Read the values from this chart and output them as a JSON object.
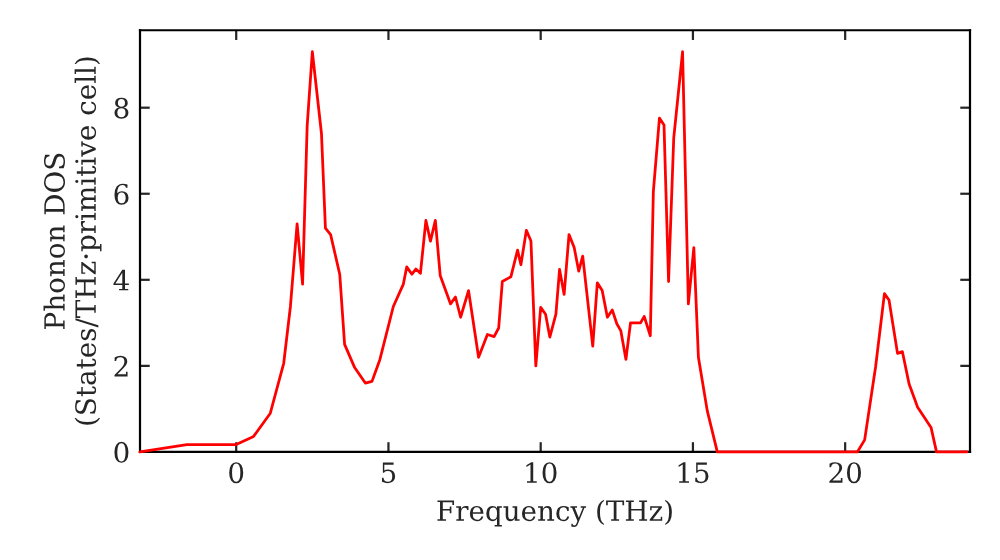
{
  "chart_data": {
    "type": "line",
    "xlabel": "Frequency (THz)",
    "ylabel": "Phonon DOS\n(States/THz·primitive cell)",
    "x": [
      -3.16,
      -1.62,
      0.0,
      0.57,
      1.12,
      1.56,
      1.78,
      2.0,
      2.18,
      2.33,
      2.5,
      2.8,
      2.93,
      3.1,
      3.4,
      3.56,
      3.89,
      4.24,
      4.46,
      4.72,
      5.16,
      5.49,
      5.6,
      5.77,
      5.9,
      6.05,
      6.23,
      6.38,
      6.54,
      6.7,
      7.04,
      7.2,
      7.37,
      7.63,
      7.96,
      8.25,
      8.47,
      8.62,
      8.74,
      9.02,
      9.24,
      9.35,
      9.53,
      9.68,
      9.84,
      10.0,
      10.16,
      10.3,
      10.5,
      10.62,
      10.77,
      10.93,
      11.1,
      11.25,
      11.38,
      11.71,
      11.86,
      12.02,
      12.19,
      12.35,
      12.5,
      12.63,
      12.8,
      12.95,
      13.28,
      13.4,
      13.6,
      13.7,
      13.9,
      14.05,
      14.2,
      14.37,
      14.66,
      14.85,
      15.03,
      15.18,
      15.47,
      15.8,
      20.4,
      20.64,
      21.0,
      21.29,
      21.44,
      21.72,
      21.88,
      22.1,
      22.38,
      22.82,
      23.0,
      24.0
    ],
    "series": [
      {
        "color": "#ff0000",
        "values": [
          0.0,
          0.17,
          0.17,
          0.36,
          0.9,
          2.06,
          3.38,
          5.3,
          3.9,
          7.57,
          9.3,
          7.4,
          5.2,
          5.05,
          4.13,
          2.5,
          1.96,
          1.6,
          1.64,
          2.15,
          3.38,
          3.9,
          4.3,
          4.13,
          4.25,
          4.15,
          5.38,
          4.9,
          5.38,
          4.1,
          3.44,
          3.6,
          3.13,
          3.75,
          2.2,
          2.73,
          2.68,
          2.88,
          3.96,
          4.07,
          4.69,
          4.35,
          5.15,
          4.9,
          2.0,
          3.36,
          3.2,
          2.67,
          3.2,
          4.24,
          3.66,
          5.05,
          4.75,
          4.2,
          4.55,
          2.46,
          3.93,
          3.75,
          3.13,
          3.3,
          2.98,
          2.82,
          2.15,
          3.0,
          3.0,
          3.15,
          2.7,
          6.05,
          7.76,
          7.6,
          3.96,
          7.3,
          9.3,
          3.44,
          4.75,
          2.2,
          0.96,
          0.0,
          0.0,
          0.28,
          1.98,
          3.68,
          3.53,
          2.29,
          2.33,
          1.58,
          1.04,
          0.57,
          0.0,
          0.0
        ]
      }
    ],
    "xlim": [
      -3.16,
      24.1
    ],
    "ylim": [
      0,
      9.8
    ],
    "xticks": [
      0,
      5,
      10,
      15,
      20
    ],
    "yticks": [
      0,
      2,
      4,
      6,
      8
    ],
    "grid": false,
    "marker": "none",
    "line_style": "solid"
  }
}
